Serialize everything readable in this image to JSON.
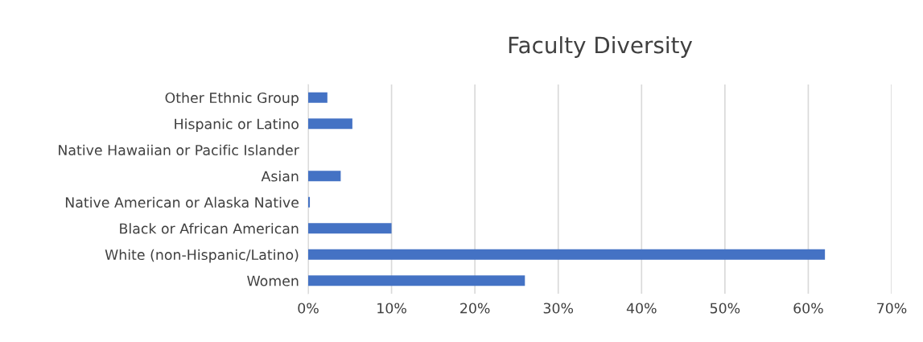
{
  "chart_data": {
    "type": "bar",
    "orientation": "horizontal",
    "title": "Faculty Diversity",
    "categories": [
      "Other Ethnic Group",
      "Hispanic or Latino",
      "Native Hawaiian or Pacific Islander",
      "Asian",
      "Native American or Alaska Native",
      "Black or African American",
      "White (non-Hispanic/Latino)",
      "Women"
    ],
    "values": [
      2.3,
      5.3,
      0,
      3.9,
      0.2,
      10,
      62,
      26
    ],
    "color": "#4472c4",
    "xlim": [
      0,
      70
    ],
    "xticks": [
      {
        "value": 0,
        "label": "0%"
      },
      {
        "value": 10,
        "label": "10%"
      },
      {
        "value": 20,
        "label": "20%"
      },
      {
        "value": 30,
        "label": "30%"
      },
      {
        "value": 40,
        "label": "40%"
      },
      {
        "value": 50,
        "label": "50%"
      },
      {
        "value": 60,
        "label": "60%"
      },
      {
        "value": 70,
        "label": "70%"
      }
    ],
    "grid": "x",
    "legend": false
  }
}
